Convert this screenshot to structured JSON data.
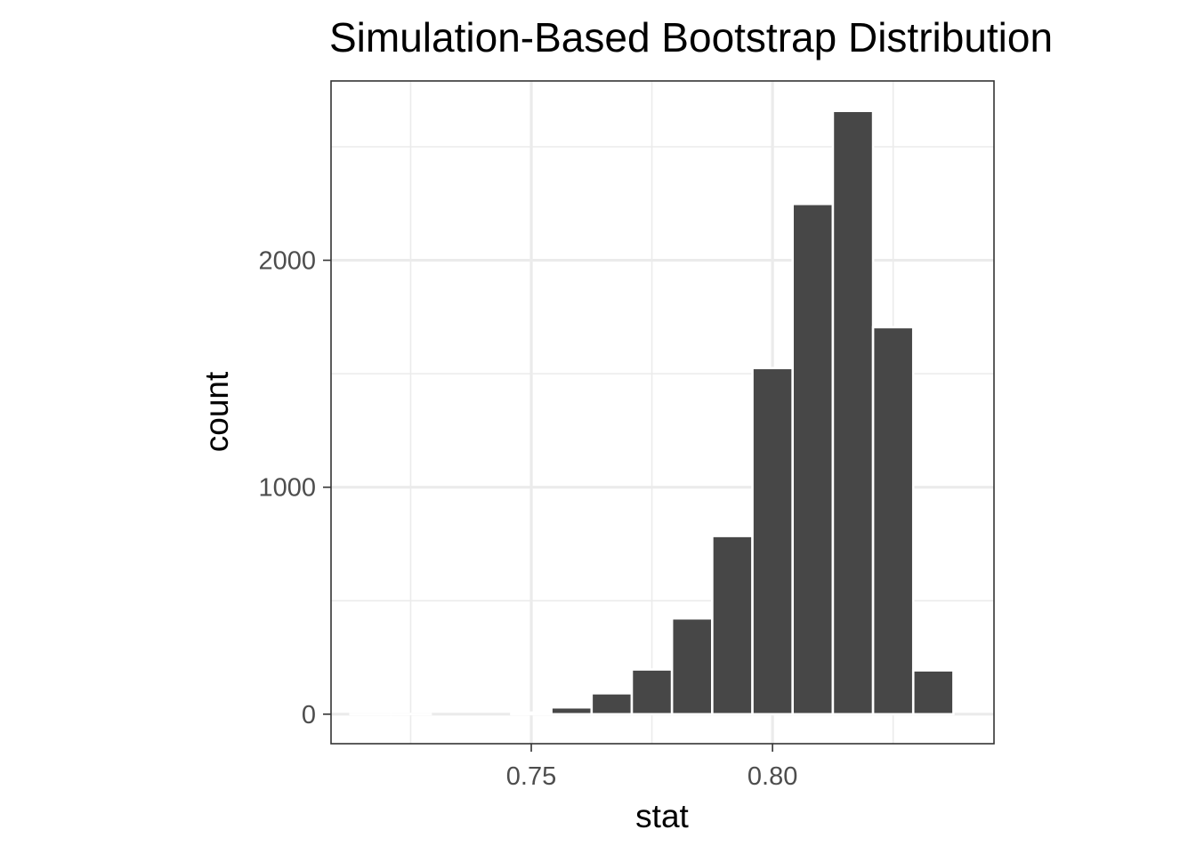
{
  "chart_data": {
    "type": "bar",
    "title": "Simulation-Based Bootstrap Distribution",
    "xlabel": "stat",
    "ylabel": "count",
    "x_ticks": [
      {
        "value": 0.75,
        "label": "0.75"
      },
      {
        "value": 0.8,
        "label": "0.80"
      }
    ],
    "y_ticks": [
      {
        "value": 0,
        "label": "0"
      },
      {
        "value": 1000,
        "label": "1000"
      },
      {
        "value": 2000,
        "label": "2000"
      }
    ],
    "x_minor_breaks": [
      0.725,
      0.775,
      0.825
    ],
    "y_minor_breaks": [
      500,
      1500,
      2500
    ],
    "xlim": [
      0.7085,
      0.8459
    ],
    "ylim": [
      -130,
      2790
    ],
    "bin_width": 0.00833,
    "bins": [
      {
        "x": 0.71667,
        "count": 1
      },
      {
        "x": 0.725,
        "count": 1
      },
      {
        "x": 0.73333,
        "count": 0
      },
      {
        "x": 0.74167,
        "count": 0
      },
      {
        "x": 0.75,
        "count": 7
      },
      {
        "x": 0.75833,
        "count": 30
      },
      {
        "x": 0.76667,
        "count": 92
      },
      {
        "x": 0.775,
        "count": 197
      },
      {
        "x": 0.78333,
        "count": 422
      },
      {
        "x": 0.79167,
        "count": 785
      },
      {
        "x": 0.8,
        "count": 1525
      },
      {
        "x": 0.80833,
        "count": 2248
      },
      {
        "x": 0.81667,
        "count": 2658
      },
      {
        "x": 0.825,
        "count": 1705
      },
      {
        "x": 0.83333,
        "count": 193
      }
    ],
    "grid": true,
    "colors": {
      "bar_fill": "#474747",
      "bar_outline": "#ffffff",
      "grid_major": "#ebebeb",
      "grid_minor": "#ebebeb",
      "panel_border": "#333333",
      "tick_text": "#4d4d4d"
    }
  }
}
